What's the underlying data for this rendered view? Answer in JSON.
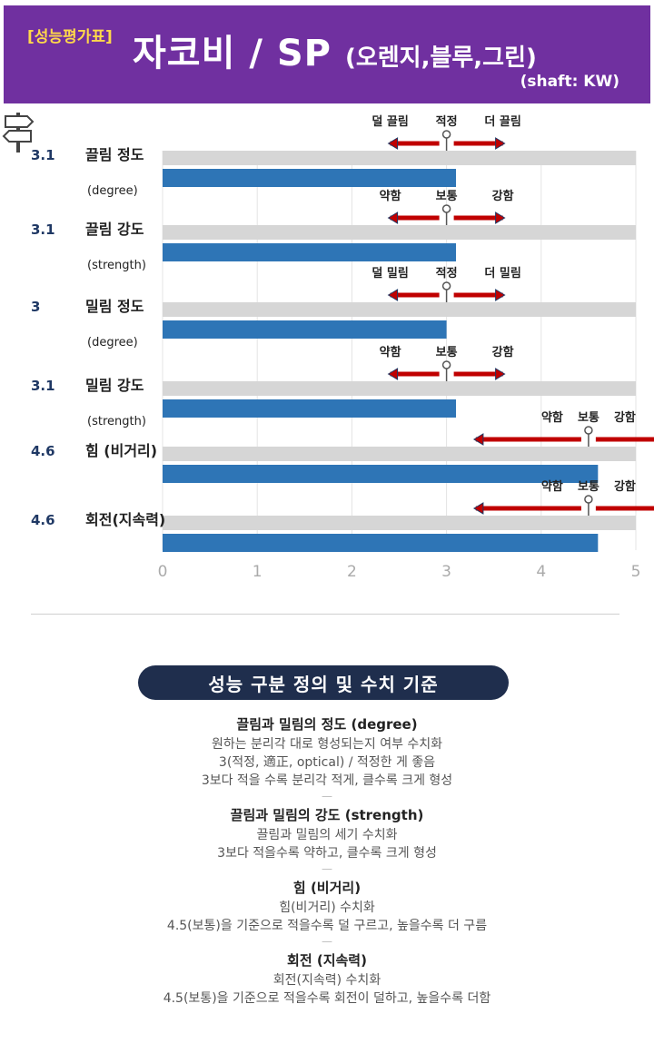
{
  "header": {
    "tag": "[성능평가표]",
    "title": "자코비 / SP",
    "subtitle": "(오렌지,블루,그린)",
    "shaft": "(shaft: KW)"
  },
  "chart_data": {
    "type": "bar",
    "orientation": "horizontal",
    "xlim": [
      0,
      5
    ],
    "xticks": [
      "0",
      "1",
      "2",
      "3",
      "4",
      "5"
    ],
    "grid": true,
    "series": [
      {
        "values": [
          3.1,
          3.1,
          3.0,
          3.1,
          4.6,
          4.6
        ]
      }
    ],
    "rows": [
      {
        "score": "3.1",
        "label": "끌림 정도",
        "sublabel": "(degree)",
        "value": 3.1,
        "scale": {
          "left": "덜 끌림",
          "mid": "적정",
          "right": "더 끌림",
          "center": 3
        }
      },
      {
        "score": "3.1",
        "label": "끌림 강도",
        "sublabel": "(strength)",
        "value": 3.1,
        "scale": {
          "left": "약함",
          "mid": "보통",
          "right": "강함",
          "center": 3
        }
      },
      {
        "score": "3",
        "label": "밀림 정도",
        "sublabel": "(degree)",
        "value": 3.0,
        "scale": {
          "left": "덜 밀림",
          "mid": "적정",
          "right": "더 밀림",
          "center": 3
        }
      },
      {
        "score": "3.1",
        "label": "밀림 강도",
        "sublabel": "(strength)",
        "value": 3.1,
        "scale": {
          "left": "약함",
          "mid": "보통",
          "right": "강함",
          "center": 3
        }
      },
      {
        "score": "4.6",
        "label": "힘 (비거리)",
        "sublabel": "",
        "value": 4.6,
        "scale": {
          "left": "약함",
          "mid": "보통",
          "right": "강함",
          "center": 4.5
        }
      },
      {
        "score": "4.6",
        "label": "회전(지속력)",
        "sublabel": "",
        "value": 4.6,
        "scale": {
          "left": "약함",
          "mid": "보통",
          "right": "강함",
          "center": 4.5
        }
      }
    ],
    "colors": {
      "bar": "#2e75b6",
      "track": "#d6d6d6",
      "arrow": "#c00000",
      "score": "#1f3864"
    }
  },
  "banner": "성능 구분 정의 및 수치 기준",
  "definitions": [
    {
      "title": "끌림과 밀림의 정도 (degree)",
      "lines": [
        "원하는 분리각 대로 형성되는지 여부 수치화",
        "3(적정, 適正, optical) / 적정한 게 좋음",
        "3보다 적을 수록 분리각 적게, 클수록 크게 형성"
      ]
    },
    {
      "title": "끌림과 밀림의 강도 (strength)",
      "lines": [
        "끌림과 밀림의 세기 수치화",
        "3보다 적을수록 약하고, 클수록 크게 형성"
      ]
    },
    {
      "title": "힘 (비거리)",
      "lines": [
        "힘(비거리) 수치화",
        "4.5(보통)을 기준으로 적을수록 덜 구르고, 높을수록 더 구름"
      ]
    },
    {
      "title": "회전 (지속력)",
      "lines": [
        "회전(지속력) 수치화",
        "4.5(보통)을 기준으로 적을수록 회전이 덜하고, 높을수록 더함"
      ]
    }
  ]
}
